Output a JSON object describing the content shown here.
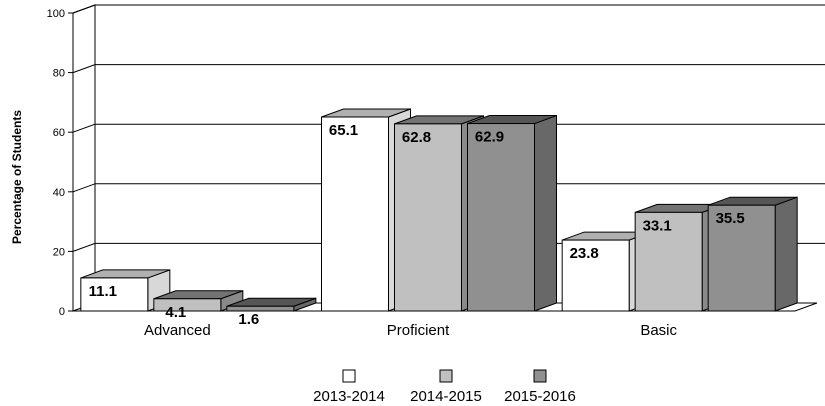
{
  "chart_data": {
    "type": "bar",
    "title": "",
    "xlabel": "",
    "ylabel": "Percentage of Students",
    "ylim": [
      0,
      100
    ],
    "yticks": [
      0,
      20,
      40,
      60,
      80,
      100
    ],
    "categories": [
      "Advanced",
      "Proficient",
      "Basic"
    ],
    "series": [
      {
        "name": "2013-2014",
        "values": [
          11.1,
          65.1,
          23.8
        ],
        "color": "#ffffff"
      },
      {
        "name": "2014-2015",
        "values": [
          4.1,
          62.8,
          33.1
        ],
        "color": "#c0c0c0"
      },
      {
        "name": "2015-2016",
        "values": [
          1.6,
          62.9,
          35.5
        ],
        "color": "#909090"
      }
    ],
    "data_labels": [
      [
        "11.1",
        "4.1",
        "1.6"
      ],
      [
        "65.1",
        "62.8",
        "62.9"
      ],
      [
        "23.8",
        "33.1",
        "35.5"
      ]
    ],
    "grid": true,
    "legend_position": "bottom-center",
    "style": "3d-clustered-column"
  }
}
